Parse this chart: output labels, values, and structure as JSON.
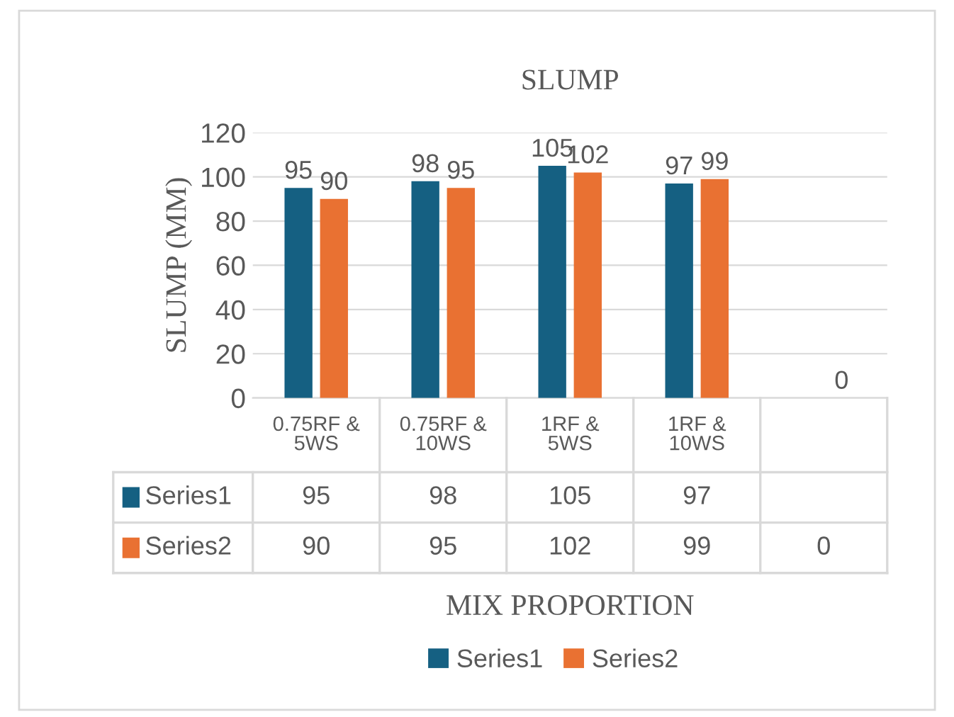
{
  "chart_data": {
    "type": "bar",
    "title": "SLUMP",
    "ylabel": "SLUMP (MM)",
    "xlabel": "MIX PROPORTION",
    "categories": [
      "0.75RF & 5WS",
      "0.75RF & 10WS",
      "1RF & 5WS",
      "1RF & 10WS",
      null
    ],
    "series": [
      {
        "name": "Series1",
        "color": "#156082",
        "values": [
          95,
          98,
          105,
          97,
          null
        ],
        "value_labels": [
          "95",
          "98",
          "105",
          "97",
          null
        ]
      },
      {
        "name": "Series2",
        "color": "#e97132",
        "values": [
          90,
          95,
          102,
          99,
          0
        ],
        "value_labels": [
          "90",
          "95",
          "102",
          "99",
          "0"
        ]
      }
    ],
    "ylim": [
      0,
      120
    ],
    "yticks": [
      0,
      20,
      40,
      60,
      80,
      100,
      120
    ],
    "grid": "y",
    "legend": "bottom",
    "annotations": [
      "95",
      "98",
      "105",
      "97",
      "90",
      "95",
      "102",
      "99",
      "0"
    ]
  }
}
